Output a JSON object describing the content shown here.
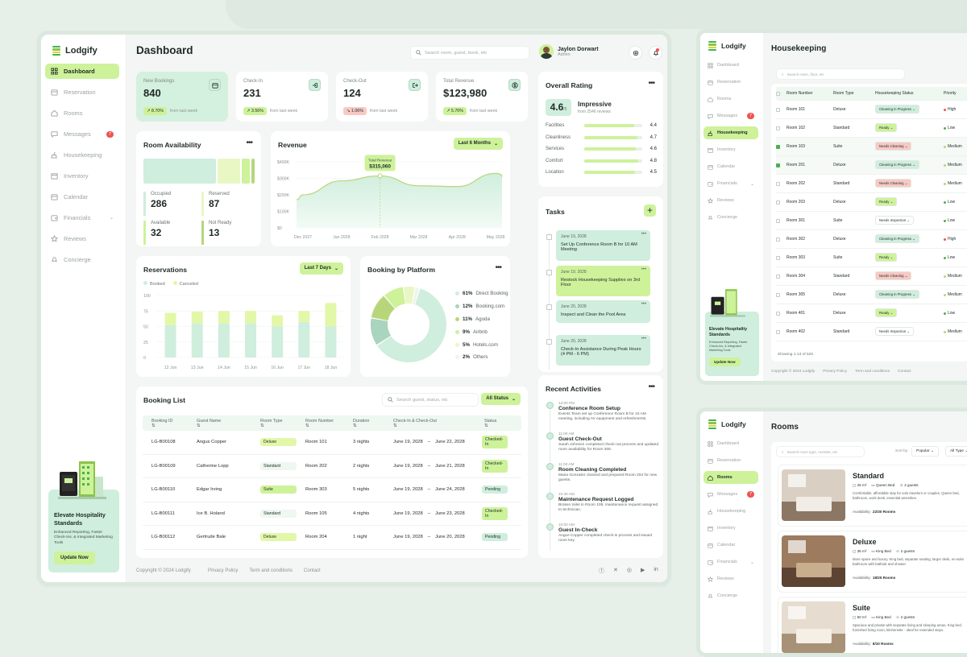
{
  "app": {
    "name": "Lodgify"
  },
  "sidebar": {
    "items": [
      {
        "label": "Dashboard",
        "icon": "grid-icon",
        "active": true
      },
      {
        "label": "Reservation",
        "icon": "calendar-icon"
      },
      {
        "label": "Rooms",
        "icon": "home-icon"
      },
      {
        "label": "Messages",
        "icon": "chat-icon",
        "badge": "7"
      },
      {
        "label": "Housekeeping",
        "icon": "broom-icon"
      },
      {
        "label": "Inventory",
        "icon": "box-icon"
      },
      {
        "label": "Calendar",
        "icon": "calendar-icon"
      },
      {
        "label": "Financials",
        "icon": "wallet-icon",
        "chevron": true
      },
      {
        "label": "Reviews",
        "icon": "star-icon"
      },
      {
        "label": "Concierge",
        "icon": "bell-icon"
      }
    ],
    "promo": {
      "title": "Elevate Hospitality Standards",
      "text": "Enhanced Reporting, Faster Check-Ins, & Integrated Marketing Tools",
      "button": "Update Now"
    }
  },
  "header": {
    "title": "Dashboard",
    "search_placeholder": "Search room, guest, book, etc",
    "user_name": "Jaylon Dorwart",
    "user_role": "Admin"
  },
  "stats": [
    {
      "label": "New Bookings",
      "value": "840",
      "change": "8.70%",
      "dir": "up",
      "note": "from last week",
      "icon": "calendar-icon"
    },
    {
      "label": "Check-In",
      "value": "231",
      "change": "3.56%",
      "dir": "up",
      "note": "from last week",
      "icon": "login-icon"
    },
    {
      "label": "Check-Out",
      "value": "124",
      "change": "1.06%",
      "dir": "down",
      "note": "from last week",
      "icon": "logout-icon"
    },
    {
      "label": "Total Revenue",
      "value": "$123,980",
      "change": "5.70%",
      "dir": "up",
      "note": "from last week",
      "icon": "dollar-icon"
    }
  ],
  "availability": {
    "title": "Room Availability",
    "items": [
      {
        "label": "Occupied",
        "value": "286",
        "color": "#cfeedd"
      },
      {
        "label": "Reserved",
        "value": "87",
        "color": "#e8f7c4"
      },
      {
        "label": "Available",
        "value": "32",
        "color": "#cdf29a"
      },
      {
        "label": "Not Ready",
        "value": "13",
        "color": "#b7d67b"
      }
    ]
  },
  "revenue": {
    "title": "Revenue",
    "filter": "Last 6 Months",
    "tooltip_label": "Total Revenue",
    "tooltip_value": "$315,060"
  },
  "rating": {
    "title": "Overall Rating",
    "score": "4.6",
    "out_of": "/5",
    "verdict": "Impressive",
    "reviews": "from 2546 reviews",
    "items": [
      {
        "label": "Facilities",
        "value": "4.4"
      },
      {
        "label": "Cleanliness",
        "value": "4.7"
      },
      {
        "label": "Services",
        "value": "4.6"
      },
      {
        "label": "Comfort",
        "value": "4.8"
      },
      {
        "label": "Location",
        "value": "4.5"
      }
    ]
  },
  "tasks": {
    "title": "Tasks",
    "items": [
      {
        "date": "June 19, 2028",
        "text": "Set Up Conference Room B for 10 AM Meeting",
        "color": "#cfeedd"
      },
      {
        "date": "June 19, 2028",
        "text": "Restock Housekeeping Supplies on 3rd Floor",
        "color": "#cdf29a"
      },
      {
        "date": "June 20, 2028",
        "text": "Inspect and Clean the Pool Area",
        "color": "#cfeedd"
      },
      {
        "date": "June 20, 2028",
        "text": "Check-In Assistance During Peak Hours (4 PM - 6 PM)",
        "color": "#cfeedd"
      }
    ]
  },
  "reservations": {
    "title": "Reservations",
    "filter": "Last 7 Days",
    "legend": [
      "Booked",
      "Canceled"
    ]
  },
  "platform": {
    "title": "Booking by Platform",
    "items": [
      {
        "pct": "61%",
        "name": "Direct Booking",
        "color": "#cfeedd"
      },
      {
        "pct": "12%",
        "name": "Booking.com",
        "color": "#a9d4bd"
      },
      {
        "pct": "11%",
        "name": "Agoda",
        "color": "#b7d67b"
      },
      {
        "pct": "9%",
        "name": "Airbnb",
        "color": "#cdf29a"
      },
      {
        "pct": "5%",
        "name": "Hotels.com",
        "color": "#e8f7c4"
      },
      {
        "pct": "2%",
        "name": "Others",
        "color": "#eef4ee"
      }
    ]
  },
  "activities": {
    "title": "Recent Activities",
    "items": [
      {
        "time": "12:00 PM",
        "title": "Conference Room Setup",
        "text": "Events Team set up Conference Room B for 10 AM meeting, including AV equipment and refreshments."
      },
      {
        "time": "11:00 AM",
        "title": "Guest Check-Out",
        "text": "Sarah Johnson completed check-out process and updated room availability for Room 305."
      },
      {
        "time": "11:00 AM",
        "title": "Room Cleaning Completed",
        "text": "Maria Gonzalez cleaned and prepared Room 204 for new guests."
      },
      {
        "time": "10:30 AM",
        "title": "Maintenance Request Logged",
        "text": "Broken toilet in Room 109, maintenance request assigned to technician."
      },
      {
        "time": "10:00 AM",
        "title": "Guest In-Check",
        "text": "Angus Copper completed check-in process and issued room key."
      }
    ]
  },
  "booking_list": {
    "title": "Booking List",
    "search_placeholder": "Search guest, status, etc",
    "filter": "All Status",
    "columns": [
      "Booking ID",
      "Guest Name",
      "Room Type",
      "Room Number",
      "Duration",
      "Check-In & Check-Out",
      "Status"
    ],
    "rows": [
      [
        "LG-B00108",
        "Angus Copper",
        "Deluxe",
        "Room 101",
        "3 nights",
        "June 19, 2028",
        "June 22, 2028",
        "Checked-In"
      ],
      [
        "LG-B00109",
        "Catherine Lopp",
        "Standard",
        "Room 202",
        "2 nights",
        "June 19, 2028",
        "June 21, 2028",
        "Checked-In"
      ],
      [
        "LG-B00110",
        "Edgar Irving",
        "Suite",
        "Room 303",
        "5 nights",
        "June 19, 2028",
        "June 24, 2028",
        "Pending"
      ],
      [
        "LG-B00111",
        "Ice B. Holand",
        "Standard",
        "Room 105",
        "4 nights",
        "June 19, 2028",
        "June 23, 2028",
        "Checked-In"
      ],
      [
        "LG-B00112",
        "Gertrude Bale",
        "Deluxe",
        "Room 204",
        "1 night",
        "June 19, 2028",
        "June 20, 2028",
        "Pending"
      ]
    ]
  },
  "footer": {
    "copyright": "Copyright © 2024 Lodgify",
    "links": [
      "Privacy Policy",
      "Term and conditions",
      "Contact"
    ]
  },
  "housekeeping": {
    "title": "Housekeeping",
    "search_placeholder": "Search room, floor, etc",
    "columns": [
      "Room Number",
      "Room Type",
      "Housekeeping Status",
      "Priority"
    ],
    "rows": [
      [
        "Room 101",
        "Deluxe",
        "Cleaning in Progress",
        "High",
        false
      ],
      [
        "Room 102",
        "Standard",
        "Ready",
        "Low",
        false
      ],
      [
        "Room 103",
        "Suite",
        "Needs Cleaning",
        "Medium",
        true
      ],
      [
        "Room 201",
        "Deluxe",
        "Cleaning in Progress",
        "Medium",
        true
      ],
      [
        "Room 202",
        "Standard",
        "Needs Cleaning",
        "Medium",
        false
      ],
      [
        "Room 203",
        "Deluxe",
        "Ready",
        "Low",
        false
      ],
      [
        "Room 301",
        "Suite",
        "Needs Inspection",
        "Low",
        false
      ],
      [
        "Room 302",
        "Deluxe",
        "Cleaning in Progress",
        "High",
        false
      ],
      [
        "Room 303",
        "Suite",
        "Ready",
        "Low",
        false
      ],
      [
        "Room 304",
        "Standard",
        "Needs Cleaning",
        "Medium",
        false
      ],
      [
        "Room 305",
        "Deluxe",
        "Cleaning in Progress",
        "Medium",
        false
      ],
      [
        "Room 401",
        "Deluxe",
        "Ready",
        "Low",
        false
      ],
      [
        "Room 402",
        "Standard",
        "Needs Inspection",
        "Medium",
        false
      ]
    ],
    "showing": "Showing 1-13 of 525",
    "copyright": "Copyright © 2024 Lodgify",
    "links": [
      "Privacy Policy",
      "Term and conditions",
      "Contact"
    ]
  },
  "rooms": {
    "title": "Rooms",
    "search_placeholder": "Search room type, number, etc",
    "sort_label": "Sort by:",
    "sort_value": "Popular",
    "type_value": "All Type",
    "items": [
      {
        "name": "Standard",
        "size": "25 m²",
        "bed": "Queen Bed",
        "guests": "2 guests",
        "desc": "Comfortable, affordable stay for solo travelers or couples. Queen bed, bathroom, work desk, essential amenities.",
        "availability_label": "Availability:",
        "availability": "22/30 Rooms"
      },
      {
        "name": "Deluxe",
        "size": "35 m²",
        "bed": "King Bed",
        "guests": "2 guests",
        "desc": "More space and luxury. King bed, separate seating, larger desk, en-suite bathroom with bathtub and shower.",
        "availability_label": "Availability:",
        "availability": "18/25 Rooms"
      },
      {
        "name": "Suite",
        "size": "50 m²",
        "bed": "King Bed",
        "guests": "2 guests",
        "desc": "Spacious and private with separate living and sleeping areas. King bed, furnished living room, kitchenette - ideal for extended stays.",
        "availability_label": "Availability:",
        "availability": "8/10 Rooms"
      }
    ]
  },
  "chart_data": [
    {
      "type": "line",
      "title": "Revenue",
      "categories": [
        "Dec 2027",
        "Jan 2028",
        "Feb 2028",
        "Mar 2028",
        "Apr 2028",
        "May 2028"
      ],
      "values": [
        200000,
        285000,
        315060,
        255000,
        250000,
        330000
      ],
      "ylim": [
        0,
        400000
      ],
      "yticks": [
        "$400K",
        "$300K",
        "$200K",
        "$100K",
        "$0"
      ]
    },
    {
      "type": "bar",
      "title": "Reservations",
      "categories": [
        "12 Jun",
        "13 Jun",
        "14 Jun",
        "15 Jun",
        "16 Jun",
        "17 Jun",
        "18 Jun"
      ],
      "series": [
        {
          "name": "Booked",
          "values": [
            52,
            55,
            55,
            55,
            50,
            57,
            50
          ]
        },
        {
          "name": "Canceled",
          "values": [
            20,
            19,
            20,
            20,
            18,
            18,
            38
          ]
        }
      ],
      "ylim": [
        0,
        100
      ],
      "yticks": [
        "100",
        "75",
        "50",
        "25",
        "0"
      ]
    },
    {
      "type": "pie",
      "title": "Booking by Platform",
      "categories": [
        "Direct Booking",
        "Booking.com",
        "Agoda",
        "Airbnb",
        "Hotels.com",
        "Others"
      ],
      "values": [
        61,
        12,
        11,
        9,
        5,
        2
      ]
    }
  ]
}
